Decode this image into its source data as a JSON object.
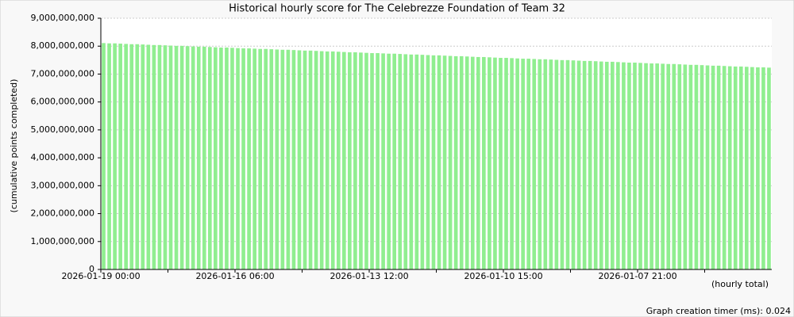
{
  "chart_data": {
    "type": "bar",
    "title": "Historical hourly score for The Celebrezze Foundation of Team 32",
    "y_label": "(cumulative points completed)",
    "x_note": "(hourly total)",
    "footer": "Graph creation timer (ms): 0.024",
    "color": "#90ee90",
    "grid": true,
    "ylim": [
      0,
      9000000000
    ],
    "yticks": [
      0,
      {
        "value": 1000000000,
        "label": "1,000,000,000"
      },
      {
        "value": 2000000000,
        "label": "2,000,000,000"
      },
      {
        "value": 3000000000,
        "label": "3,000,000,000"
      },
      {
        "value": 4000000000,
        "label": "4,000,000,000"
      },
      {
        "value": 5000000000,
        "label": "5,000,000,000"
      },
      {
        "value": 6000000000,
        "label": "6,000,000,000"
      },
      {
        "value": 7000000000,
        "label": "7,000,000,000"
      },
      {
        "value": 8000000000,
        "label": "8,000,000,000"
      },
      {
        "value": 9000000000,
        "label": "9,000,000,000"
      }
    ],
    "categories": [
      "2026-01-19 00:00",
      null,
      null,
      null,
      null,
      null,
      null,
      null,
      null,
      null,
      null,
      null,
      null,
      null,
      null,
      null,
      null,
      null,
      null,
      null,
      null,
      null,
      null,
      null,
      "2026-01-16 06:00",
      null,
      null,
      null,
      null,
      null,
      null,
      null,
      null,
      null,
      null,
      null,
      null,
      null,
      null,
      null,
      null,
      null,
      null,
      null,
      null,
      null,
      null,
      null,
      "2026-01-13 12:00",
      null,
      null,
      null,
      null,
      null,
      null,
      null,
      null,
      null,
      null,
      null,
      null,
      null,
      null,
      null,
      null,
      null,
      null,
      null,
      null,
      null,
      null,
      null,
      "2026-01-10 15:00",
      null,
      null,
      null,
      null,
      null,
      null,
      null,
      null,
      null,
      null,
      null,
      null,
      null,
      null,
      null,
      null,
      null,
      null,
      null,
      null,
      null,
      null,
      null,
      "2026-01-07 21:00",
      null,
      null,
      null,
      null,
      null,
      null,
      null,
      null,
      null,
      null,
      null,
      null,
      null,
      null,
      null,
      null,
      null,
      null,
      null,
      null,
      null,
      null,
      null
    ],
    "values": [
      8110000000.0,
      8100000000.0,
      8100000000.0,
      8090000000.0,
      8080000000.0,
      8070000000.0,
      8070000000.0,
      8060000000.0,
      8050000000.0,
      8040000000.0,
      8040000000.0,
      8030000000.0,
      8020000000.0,
      8010000000.0,
      8010000000.0,
      8000000000.0,
      7990000000.0,
      7980000000.0,
      7980000000.0,
      7970000000.0,
      7960000000.0,
      7950000000.0,
      7950000000.0,
      7940000000.0,
      7930000000.0,
      7920000000.0,
      7920000000.0,
      7910000000.0,
      7900000000.0,
      7900000000.0,
      7890000000.0,
      7880000000.0,
      7870000000.0,
      7870000000.0,
      7860000000.0,
      7850000000.0,
      7840000000.0,
      7840000000.0,
      7830000000.0,
      7820000000.0,
      7810000000.0,
      7810000000.0,
      7800000000.0,
      7790000000.0,
      7780000000.0,
      7780000000.0,
      7770000000.0,
      7760000000.0,
      7750000000.0,
      7750000000.0,
      7740000000.0,
      7730000000.0,
      7730000000.0,
      7720000000.0,
      7710000000.0,
      7700000000.0,
      7700000000.0,
      7690000000.0,
      7680000000.0,
      7670000000.0,
      7670000000.0,
      7660000000.0,
      7650000000.0,
      7640000000.0,
      7640000000.0,
      7630000000.0,
      7620000000.0,
      7610000000.0,
      7610000000.0,
      7600000000.0,
      7590000000.0,
      7580000000.0,
      7580000000.0,
      7570000000.0,
      7560000000.0,
      7550000000.0,
      7550000000.0,
      7540000000.0,
      7530000000.0,
      7530000000.0,
      7520000000.0,
      7510000000.0,
      7500000000.0,
      7500000000.0,
      7490000000.0,
      7480000000.0,
      7470000000.0,
      7470000000.0,
      7460000000.0,
      7450000000.0,
      7440000000.0,
      7440000000.0,
      7430000000.0,
      7420000000.0,
      7410000000.0,
      7410000000.0,
      7400000000.0,
      7390000000.0,
      7380000000.0,
      7380000000.0,
      7370000000.0,
      7360000000.0,
      7360000000.0,
      7350000000.0,
      7340000000.0,
      7330000000.0,
      7330000000.0,
      7320000000.0,
      7310000000.0,
      7300000000.0,
      7300000000.0,
      7290000000.0,
      7280000000.0,
      7270000000.0,
      7270000000.0,
      7260000000.0,
      7250000000.0,
      7240000000.0,
      7240000000.0,
      7230000000.0
    ]
  }
}
